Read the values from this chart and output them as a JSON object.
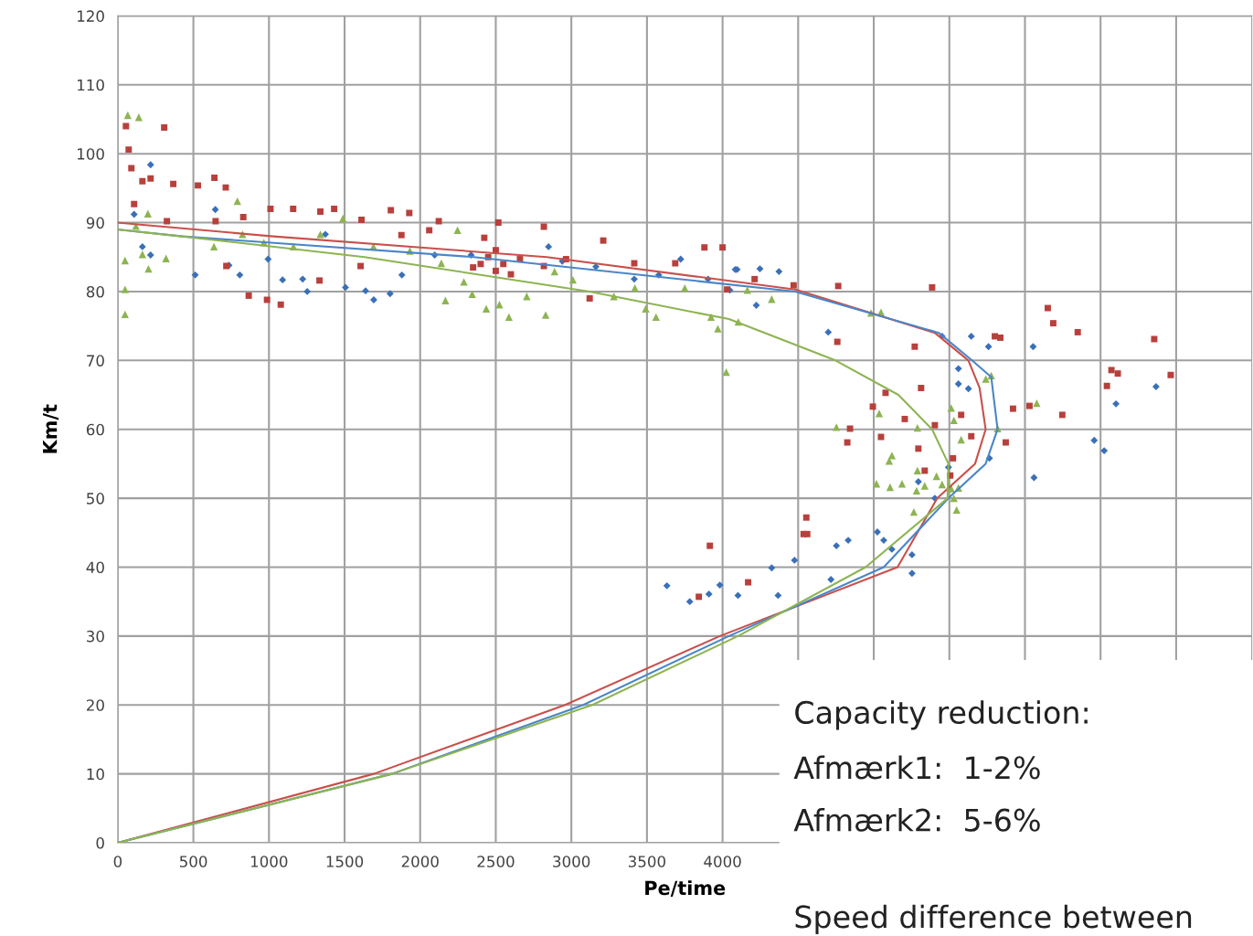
{
  "chart_data": {
    "type": "scatter",
    "xlabel": "Pe/time",
    "ylabel": "Km/t",
    "xlim": [
      0,
      7500
    ],
    "ylim": [
      0,
      120
    ],
    "xticks": [
      0,
      500,
      1000,
      1500,
      2000,
      2500,
      3000,
      3500,
      4000,
      {
        "value": 4500,
        "label": null
      },
      {
        "value": 5000,
        "label": null
      },
      {
        "value": 5500,
        "label": null
      },
      {
        "value": 6000,
        "label": null
      },
      {
        "value": 6500,
        "label": null
      },
      {
        "value": 7000,
        "label": null
      }
    ],
    "yticks": [
      0,
      10,
      20,
      30,
      40,
      50,
      60,
      70,
      80,
      90,
      100,
      110,
      120
    ],
    "grid": true,
    "annotations": [
      "Capacity reduction:",
      "Afmærk1:  1-2%",
      "Afmærk2:  5-6%",
      "Speed difference between"
    ],
    "series": [
      {
        "marker": "diamond",
        "color": "#3a70b8",
        "x": [
          217,
          108,
          163,
          217,
          512,
          645,
          807,
          994,
          1090,
          1223,
          1253,
          1373,
          1506,
          1639,
          1693,
          1801,
          1879,
          2096,
          2337,
          2849,
          2940,
          3162,
          3416,
          3578,
          3723,
          3904,
          4084,
          4048,
          735,
          4096,
          4247,
          4373,
          4223,
          4699,
          5452,
          5645,
          5759,
          6054,
          5560,
          5560,
          5626,
          6867,
          6602,
          6458,
          6524,
          5765,
          6060,
          5494,
          5295,
          5404,
          5024,
          5066,
          5120,
          5253,
          5253,
          4831,
          4753,
          4476,
          4325,
          4717,
          4102,
          4367,
          3632,
          3783,
          3910,
          3982
        ],
        "values": [
          98.4,
          91.2,
          86.5,
          85.3,
          82.4,
          91.9,
          82.4,
          84.7,
          81.7,
          81.8,
          80,
          88.3,
          80.6,
          80.1,
          78.8,
          79.7,
          82.4,
          85.3,
          85.3,
          86.5,
          84.4,
          83.6,
          81.8,
          82.4,
          84.7,
          81.8,
          83.2,
          80.2,
          83.8,
          83.2,
          83.3,
          82.9,
          78,
          74.1,
          73.5,
          73.5,
          72,
          72,
          68.8,
          66.6,
          65.9,
          66.2,
          63.7,
          58.4,
          56.9,
          55.8,
          53,
          54.5,
          52.4,
          50,
          45.1,
          43.9,
          42.6,
          41.8,
          39.1,
          43.9,
          43.1,
          41,
          39.9,
          38.2,
          35.9,
          35.9,
          37.3,
          35,
          36.1,
          37.4
        ]
      },
      {
        "marker": "square",
        "color": "#b8403c",
        "x": [
          54,
          307,
          72,
          90,
          163,
          217,
          367,
          530,
          639,
          714,
          325,
          108,
          647,
          830,
          1010,
          1160,
          1340,
          1431,
          1612,
          1806,
          1928,
          2123,
          2517,
          2818,
          3211,
          3880,
          4000,
          866,
          987,
          1078,
          718,
          1334,
          1606,
          1876,
          2060,
          2424,
          2660,
          2818,
          2965,
          3121,
          3416,
          3687,
          4030,
          4212,
          2400,
          2450,
          2500,
          2550,
          2600,
          2500,
          2350,
          4470,
          4765,
          5386,
          4759,
          5271,
          6151,
          6187,
          6349,
          5801,
          5837,
          6855,
          6572,
          6614,
          6964,
          6542,
          5313,
          5078,
          4994,
          5205,
          5578,
          5921,
          6030,
          6247,
          4843,
          4825,
          5048,
          5404,
          5645,
          5873,
          5295,
          5524,
          5337,
          5506,
          4554,
          4536,
          4560,
          4169,
          3916,
          3843
        ],
        "values": [
          104,
          103.8,
          100.6,
          97.9,
          96,
          96.4,
          95.6,
          95.4,
          96.5,
          95.1,
          90.2,
          92.7,
          90.2,
          90.8,
          92,
          92,
          91.6,
          92,
          90.4,
          91.8,
          91.4,
          90.2,
          90,
          89.4,
          87.4,
          86.4,
          86.4,
          79.4,
          78.8,
          78.1,
          83.7,
          81.6,
          83.7,
          88.2,
          88.9,
          87.8,
          84.7,
          83.7,
          84.7,
          79,
          84.1,
          84.1,
          80.3,
          81.8,
          84,
          85,
          83,
          84,
          82.5,
          86,
          83.5,
          80.9,
          80.8,
          80.6,
          72.7,
          72,
          77.6,
          75.4,
          74.1,
          73.5,
          73.3,
          73.1,
          68.6,
          68.1,
          67.9,
          66.3,
          66,
          65.3,
          63.3,
          61.5,
          62.1,
          63,
          63.4,
          62.1,
          60.1,
          58.1,
          58.9,
          60.6,
          59,
          58.1,
          57.2,
          55.8,
          54,
          53.3,
          47.2,
          44.8,
          44.8,
          37.8,
          43.1,
          35.7
        ]
      },
      {
        "marker": "triangle",
        "color": "#8db452",
        "x": [
          66,
          139,
          48,
          48,
          48,
          163,
          203,
          319,
          120,
          199,
          791,
          636,
          825,
          966,
          1162,
          1340,
          1489,
          1691,
          1932,
          2247,
          2140,
          2167,
          2289,
          2344,
          2437,
          2524,
          2587,
          2705,
          2830,
          2889,
          3010,
          3281,
          3492,
          3420,
          3750,
          3924,
          3969,
          4104,
          4164,
          4024,
          3560,
          4325,
          4982,
          5048,
          5777,
          5741,
          6078,
          5819,
          5512,
          5530,
          5036,
          4753,
          5289,
          5578,
          5120,
          5102,
          5289,
          5415,
          5018,
          5108,
          5187,
          5283,
          5337,
          5452,
          5512,
          5560,
          5530,
          5548,
          5265
        ],
        "values": [
          105.6,
          105.3,
          84.5,
          80.3,
          76.7,
          85.4,
          83.3,
          84.8,
          89.5,
          91.3,
          93.1,
          86.5,
          88.3,
          87.1,
          86.5,
          88.3,
          90.6,
          86.5,
          85.9,
          88.9,
          84.1,
          78.7,
          81.4,
          79.6,
          77.5,
          78.1,
          76.3,
          79.3,
          76.6,
          82.9,
          81.7,
          79.3,
          77.5,
          80.5,
          80.5,
          76.3,
          74.6,
          75.6,
          80.2,
          68.3,
          76.3,
          78.9,
          76.9,
          77,
          67.8,
          67.3,
          63.8,
          60.1,
          63.1,
          61.3,
          62.3,
          60.3,
          60.2,
          58.5,
          56.2,
          55.4,
          54,
          53.2,
          52.1,
          51.6,
          52.1,
          51.1,
          51.8,
          52,
          51.4,
          51.5,
          50,
          48.3,
          48
        ]
      },
      {
        "type": "line",
        "marker": "none",
        "color": "#c9504c",
        "x": [
          0,
          1693,
          2958,
          3982,
          5157,
          5420,
          5670,
          5740,
          5700,
          5626,
          5404,
          4482,
          2837,
          1030,
          0
        ],
        "values": [
          0,
          10,
          20,
          30,
          40,
          50,
          55,
          60,
          66,
          70,
          74,
          80.3,
          85,
          88,
          90
        ]
      },
      {
        "type": "line",
        "marker": "none",
        "color": "#4a86c8",
        "x": [
          0,
          1813,
          3078,
          4042,
          5066,
          5494,
          5740,
          5819,
          5777,
          5650,
          5430,
          4480,
          2355,
          428,
          0
        ],
        "values": [
          0,
          10,
          20,
          30,
          40,
          50,
          55,
          60,
          67.6,
          70,
          74,
          80,
          85,
          88,
          89
        ]
      },
      {
        "type": "line",
        "marker": "none",
        "color": "#8db452",
        "x": [
          0,
          1813,
          3138,
          4102,
          4946,
          5488,
          5494,
          5386,
          5163,
          4747,
          4042,
          3120,
          1632,
          428,
          0
        ],
        "values": [
          0,
          10,
          20,
          30,
          40,
          50,
          55,
          60,
          65,
          70,
          76,
          80,
          85,
          88,
          89
        ]
      }
    ]
  }
}
